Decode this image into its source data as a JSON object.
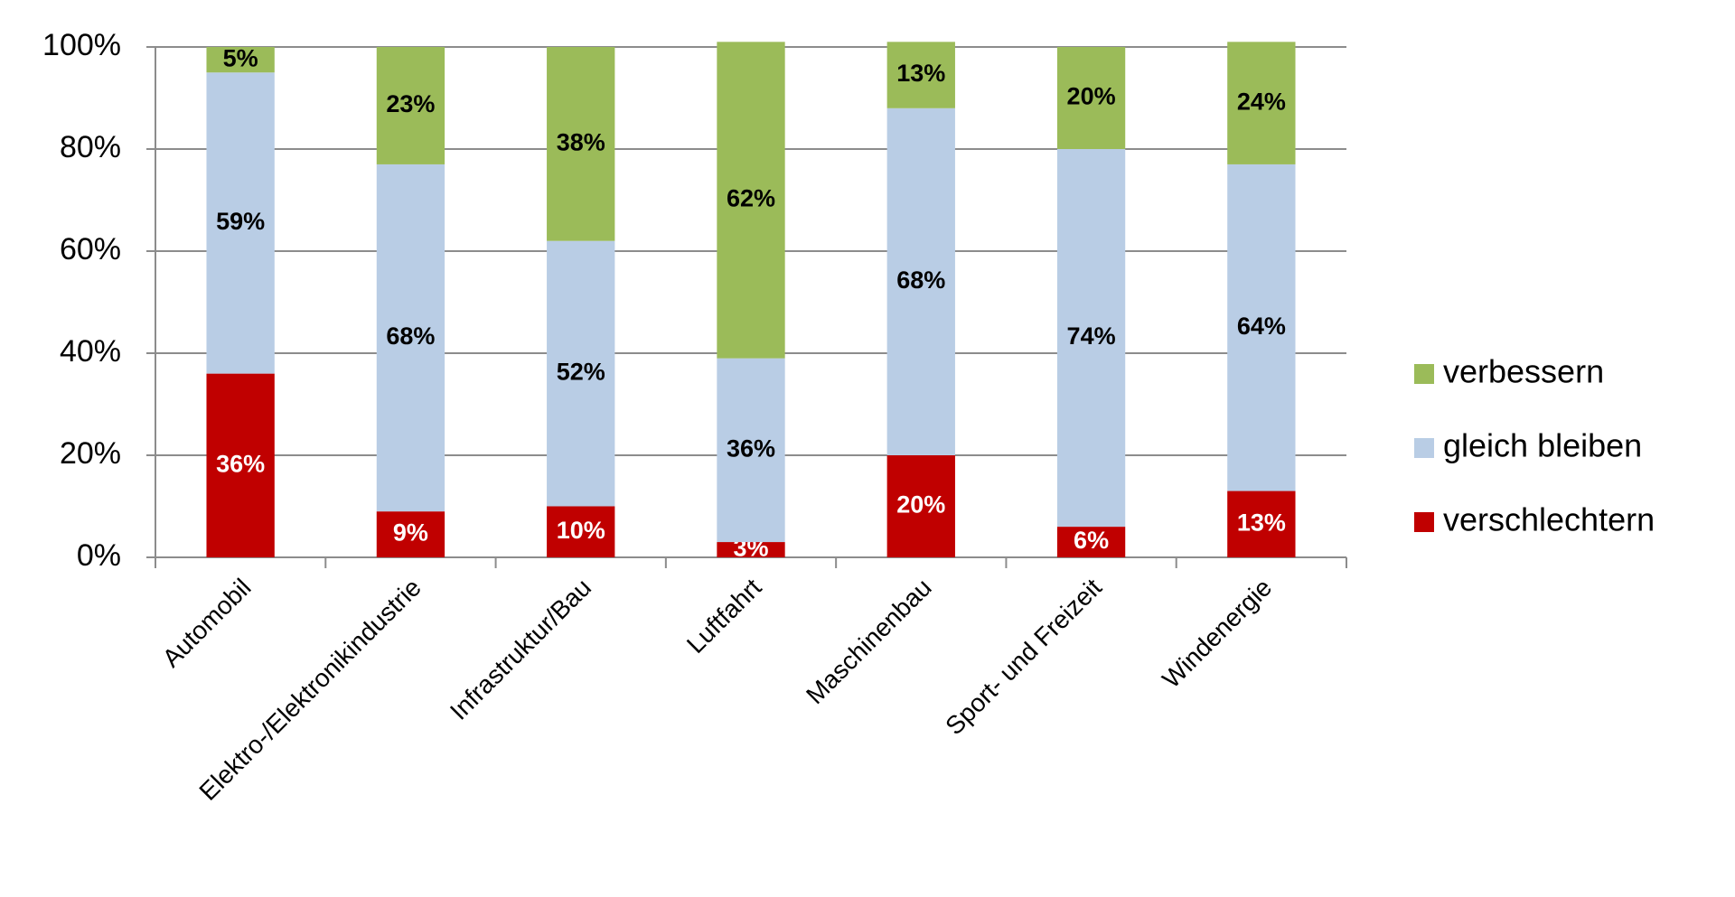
{
  "chart_data": {
    "type": "stacked_bar",
    "categories": [
      "Automobil",
      "Elektro-/Elektronikindustrie",
      "Infrastruktur/Bau",
      "Luftfahrt",
      "Maschinenbau",
      "Sport- und Freizeit",
      "Windenergie"
    ],
    "series": [
      {
        "name": "verschlechtern",
        "color": "#c00000",
        "label_color": "#ffffff",
        "values": [
          36,
          9,
          10,
          3,
          20,
          6,
          13
        ],
        "value_labels": [
          "36%",
          "9%",
          "10%",
          "3%",
          "20%",
          "6%",
          "13%"
        ]
      },
      {
        "name": "gleich bleiben",
        "color": "#b9cde5",
        "label_color": "#000000",
        "values": [
          59,
          68,
          52,
          36,
          68,
          74,
          64
        ],
        "value_labels": [
          "59%",
          "68%",
          "52%",
          "36%",
          "68%",
          "74%",
          "64%"
        ]
      },
      {
        "name": "verbessern",
        "color": "#9bbb59",
        "label_color": "#000000",
        "values": [
          5,
          23,
          38,
          62,
          13,
          20,
          24
        ],
        "value_labels": [
          "5%",
          "23%",
          "38%",
          "62%",
          "13%",
          "20%",
          "24%"
        ]
      }
    ],
    "ylim": [
      0,
      100
    ],
    "yticks": [
      {
        "value": 0,
        "label": "0%"
      },
      {
        "value": 20,
        "label": "20%"
      },
      {
        "value": 40,
        "label": "40%"
      },
      {
        "value": 60,
        "label": "60%"
      },
      {
        "value": 80,
        "label": "80%"
      },
      {
        "value": 100,
        "label": "100%"
      }
    ],
    "grid": true,
    "legend": "right"
  }
}
